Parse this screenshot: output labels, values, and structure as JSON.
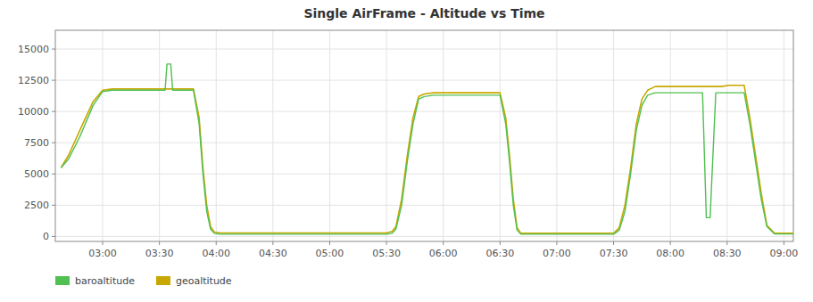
{
  "chart_data": {
    "type": "line",
    "title": "Single AirFrame - Altitude vs Time",
    "grid": true,
    "legend": "bottom",
    "xlim": [
      155,
      545
    ],
    "xticks": [
      {
        "value": 180,
        "label": "03:00"
      },
      {
        "value": 210,
        "label": "03:30"
      },
      {
        "value": 240,
        "label": "04:00"
      },
      {
        "value": 270,
        "label": "04:30"
      },
      {
        "value": 300,
        "label": "05:00"
      },
      {
        "value": 330,
        "label": "05:30"
      },
      {
        "value": 360,
        "label": "06:00"
      },
      {
        "value": 390,
        "label": "06:30"
      },
      {
        "value": 420,
        "label": "07:00"
      },
      {
        "value": 450,
        "label": "07:30"
      },
      {
        "value": 480,
        "label": "08:00"
      },
      {
        "value": 510,
        "label": "08:30"
      },
      {
        "value": 540,
        "label": "09:00"
      }
    ],
    "ylim": [
      -400,
      16500
    ],
    "yticks": [
      0,
      2500,
      5000,
      7500,
      10000,
      12500,
      15000
    ],
    "series": [
      {
        "name": "baroaltitude",
        "color": "#50c050",
        "x": [
          158,
          162,
          168,
          175,
          180,
          185,
          195,
          205,
          213,
          214,
          216,
          217,
          220,
          228,
          231,
          233,
          235,
          237,
          239,
          242,
          330,
          333,
          335,
          338,
          341,
          344,
          347,
          350,
          355,
          360,
          380,
          390,
          393,
          395,
          397,
          399,
          401,
          450,
          453,
          456,
          459,
          462,
          465,
          468,
          472,
          476,
          480,
          483,
          494,
          497,
          499,
          501,
          504,
          507,
          511,
          518,
          519,
          522,
          525,
          528,
          531,
          535,
          545
        ],
        "values": [
          5500,
          6200,
          8000,
          10500,
          11600,
          11700,
          11700,
          11700,
          11700,
          13800,
          13800,
          11700,
          11700,
          11700,
          9000,
          5000,
          2000,
          600,
          250,
          180,
          180,
          250,
          600,
          2500,
          6000,
          9000,
          11000,
          11200,
          11300,
          11300,
          11300,
          11300,
          9000,
          6000,
          2500,
          500,
          180,
          180,
          500,
          2000,
          5000,
          8500,
          10500,
          11300,
          11500,
          11500,
          11500,
          11500,
          11500,
          11500,
          1500,
          1500,
          11500,
          11500,
          11500,
          11500,
          11500,
          9000,
          6000,
          3000,
          800,
          200,
          200
        ]
      },
      {
        "name": "geoaltitude",
        "color": "#c8a800",
        "x": [
          158,
          162,
          168,
          175,
          180,
          185,
          195,
          205,
          213,
          214,
          220,
          225,
          228,
          231,
          233,
          235,
          237,
          239,
          242,
          330,
          333,
          335,
          338,
          341,
          344,
          347,
          350,
          355,
          360,
          380,
          390,
          393,
          395,
          397,
          399,
          401,
          450,
          453,
          456,
          459,
          462,
          465,
          468,
          472,
          476,
          480,
          483,
          494,
          497,
          500,
          504,
          507,
          511,
          518,
          519,
          522,
          525,
          528,
          531,
          535,
          545
        ],
        "values": [
          5500,
          6500,
          8500,
          10800,
          11700,
          11800,
          11800,
          11800,
          11800,
          11800,
          11800,
          11800,
          11800,
          9500,
          5500,
          2500,
          800,
          350,
          280,
          280,
          400,
          800,
          3000,
          6500,
          9500,
          11200,
          11400,
          11500,
          11500,
          11500,
          11500,
          9500,
          6500,
          3000,
          700,
          250,
          250,
          700,
          2500,
          5500,
          9000,
          11000,
          11700,
          12000,
          12000,
          12000,
          12000,
          12000,
          12000,
          12000,
          12000,
          12000,
          12100,
          12100,
          12100,
          9500,
          6500,
          3500,
          900,
          250,
          250
        ]
      }
    ]
  }
}
